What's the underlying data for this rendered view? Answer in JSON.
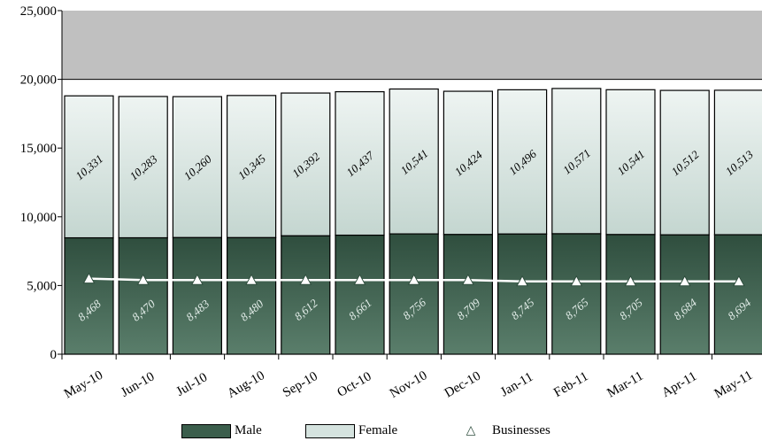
{
  "chart_data": {
    "type": "bar",
    "stacked": true,
    "categories": [
      "May-10",
      "Jun-10",
      "Jul-10",
      "Aug-10",
      "Sep-10",
      "Oct-10",
      "Nov-10",
      "Dec-10",
      "Jan-11",
      "Feb-11",
      "Mar-11",
      "Apr-11",
      "May-11"
    ],
    "series": [
      {
        "name": "Male",
        "type": "bar",
        "color": "#3b5e4c",
        "values": [
          8468,
          8470,
          8483,
          8480,
          8612,
          8661,
          8756,
          8709,
          8745,
          8765,
          8705,
          8684,
          8694
        ],
        "labels": [
          "8,468",
          "8,470",
          "8,483",
          "8,480",
          "8,612",
          "8,661",
          "8,756",
          "8,709",
          "8,745",
          "8,765",
          "8,705",
          "8,684",
          "8,694"
        ]
      },
      {
        "name": "Female",
        "type": "bar",
        "color": "#d5e3df",
        "values": [
          10331,
          10283,
          10260,
          10345,
          10392,
          10437,
          10541,
          10424,
          10496,
          10571,
          10541,
          10512,
          10513
        ],
        "labels": [
          "10,331",
          "10,283",
          "10,260",
          "10,345",
          "10,392",
          "10,437",
          "10,541",
          "10,424",
          "10,496",
          "10,571",
          "10,541",
          "10,512",
          "10,513"
        ]
      },
      {
        "name": "Businesses",
        "type": "line",
        "color": "#ffffff",
        "values": [
          5500,
          5400,
          5400,
          5400,
          5400,
          5400,
          5400,
          5400,
          5300,
          5300,
          5300,
          5300,
          5300
        ]
      }
    ],
    "ylim": [
      0,
      25000
    ],
    "yticks": [
      0,
      5000,
      10000,
      15000,
      20000,
      25000
    ],
    "ytick_labels": [
      "0",
      "5,000",
      "10,000",
      "15,000",
      "20,000",
      "25,000"
    ],
    "band": {
      "from": 20000,
      "to": 25000,
      "color": "#c0c0c0"
    },
    "legend": {
      "position": "bottom"
    }
  }
}
